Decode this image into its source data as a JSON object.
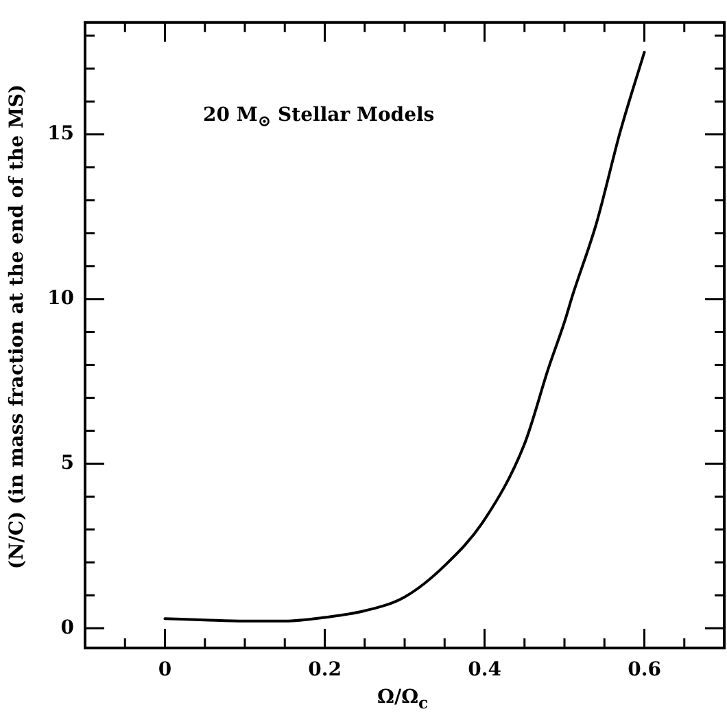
{
  "chart_data": {
    "type": "line",
    "xlabel": "Ω/Ω$_{c}$",
    "ylabel": "(N/C) (in mass fraction at the end of the MS)",
    "annotations": [
      "20 M$_{⊙}$  Stellar Models"
    ],
    "x": [
      0,
      0.05,
      0.1,
      0.15,
      0.2,
      0.25,
      0.3,
      0.35,
      0.4,
      0.45,
      0.48,
      0.5,
      0.51,
      0.54,
      0.57,
      0.6
    ],
    "series": [
      {
        "color": "#000000",
        "values": [
          0.29,
          0.25,
          0.22,
          0.22,
          0.33,
          0.53,
          0.95,
          1.9,
          3.3,
          5.6,
          7.9,
          9.3,
          10.1,
          12.3,
          15.1,
          17.5
        ]
      }
    ],
    "xlim": [
      -0.1,
      0.7
    ],
    "ylim": [
      -0.6,
      18.4
    ],
    "xticks": [
      {
        "value": -0.1,
        "label": null
      },
      {
        "value": -0.05,
        "label": null
      },
      0,
      {
        "value": 0.05,
        "label": null
      },
      {
        "value": 0.1,
        "label": null
      },
      {
        "value": 0.15,
        "label": null
      },
      0.2,
      {
        "value": 0.25,
        "label": null
      },
      {
        "value": 0.3,
        "label": null
      },
      {
        "value": 0.35,
        "label": null
      },
      0.4,
      {
        "value": 0.45,
        "label": null
      },
      {
        "value": 0.5,
        "label": null
      },
      {
        "value": 0.55,
        "label": null
      },
      0.6,
      {
        "value": 0.65,
        "label": null
      }
    ],
    "yticks": [
      0,
      {
        "value": 1,
        "label": null
      },
      {
        "value": 2,
        "label": null
      },
      {
        "value": 3,
        "label": null
      },
      {
        "value": 4,
        "label": null
      },
      5,
      {
        "value": 6,
        "label": null
      },
      {
        "value": 7,
        "label": null
      },
      {
        "value": 8,
        "label": null
      },
      {
        "value": 9,
        "label": null
      },
      10,
      {
        "value": 11,
        "label": null
      },
      {
        "value": 12,
        "label": null
      },
      {
        "value": 13,
        "label": null
      },
      {
        "value": 14,
        "label": null
      },
      15,
      {
        "value": 16,
        "label": null
      },
      {
        "value": 17,
        "label": null
      },
      {
        "value": 18,
        "label": null
      }
    ],
    "grid": false,
    "legend": false,
    "marker": "none",
    "line_style": "solid"
  }
}
